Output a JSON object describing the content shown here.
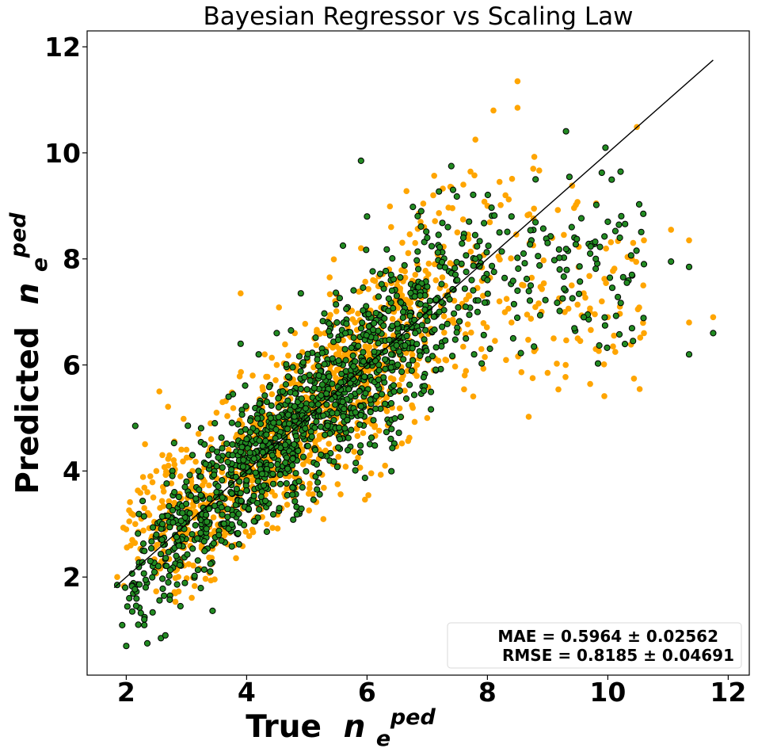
{
  "chart_data": {
    "type": "scatter",
    "title": "Bayesian Regressor vs Scaling Law",
    "xlabel": {
      "prefix": "True",
      "symbol": "n",
      "subscript": "e",
      "superscript": "ped"
    },
    "ylabel": {
      "prefix": "Predicted",
      "symbol": "n",
      "subscript": "e",
      "superscript": "ped"
    },
    "xlim": [
      1.35,
      12.35
    ],
    "ylim": [
      0.15,
      12.3
    ],
    "xticks": [
      2,
      4,
      6,
      8,
      10,
      12
    ],
    "yticks": [
      2,
      4,
      6,
      8,
      10,
      12
    ],
    "grid": false,
    "legend_placement": "lower-right",
    "annotation_lines": [
      "MAE = 0.5964 ± 0.02562",
      "RMSE = 0.8185 ± 0.04691"
    ],
    "identity_line": {
      "x": [
        1.8,
        11.75
      ],
      "y": [
        1.8,
        11.75
      ],
      "color": "#000000"
    },
    "colors": {
      "scaling_law": "#ffa500",
      "bayesian": "#228b22",
      "bayesian_edge": "#000000"
    },
    "series": [
      {
        "color": "#ffa500",
        "points": [
          [
            1.85,
            2.0
          ],
          [
            2.0,
            2.9
          ],
          [
            2.05,
            3.05
          ],
          [
            2.1,
            2.7
          ],
          [
            2.15,
            3.0
          ],
          [
            2.2,
            2.85
          ],
          [
            2.25,
            3.1
          ],
          [
            2.3,
            3.3
          ],
          [
            2.35,
            3.6
          ],
          [
            2.4,
            3.9
          ],
          [
            2.45,
            3.5
          ],
          [
            2.5,
            4.0
          ],
          [
            2.55,
            5.5
          ],
          [
            2.6,
            4.3
          ],
          [
            2.7,
            4.1
          ],
          [
            2.8,
            3.4
          ],
          [
            2.9,
            3.9
          ],
          [
            3.0,
            4.4
          ],
          [
            3.1,
            4.0
          ],
          [
            3.2,
            4.7
          ],
          [
            3.3,
            3.8
          ],
          [
            3.4,
            4.9
          ],
          [
            3.5,
            5.1
          ],
          [
            3.6,
            5.3
          ],
          [
            3.7,
            4.4
          ],
          [
            3.8,
            2.6
          ],
          [
            3.9,
            7.35
          ],
          [
            4.0,
            5.2
          ],
          [
            4.1,
            5.8
          ],
          [
            4.2,
            3.3
          ],
          [
            4.3,
            6.2
          ],
          [
            4.5,
            6.0
          ],
          [
            4.6,
            5.4
          ],
          [
            4.7,
            3.9
          ],
          [
            4.8,
            6.6
          ],
          [
            5.0,
            5.8
          ],
          [
            5.1,
            3.9
          ],
          [
            5.2,
            4.4
          ],
          [
            5.3,
            6.6
          ],
          [
            5.4,
            6.0
          ],
          [
            5.5,
            4.7
          ],
          [
            5.6,
            6.3
          ],
          [
            5.7,
            7.0
          ],
          [
            5.8,
            6.8
          ],
          [
            5.9,
            8.2
          ],
          [
            6.0,
            5.5
          ],
          [
            6.1,
            7.6
          ],
          [
            6.2,
            6.2
          ],
          [
            6.3,
            4.1
          ],
          [
            6.4,
            8.6
          ],
          [
            6.5,
            7.5
          ],
          [
            6.6,
            5.8
          ],
          [
            6.7,
            7.2
          ],
          [
            6.8,
            8.3
          ],
          [
            6.9,
            7.0
          ],
          [
            7.0,
            5.0
          ],
          [
            7.1,
            9.2
          ],
          [
            7.2,
            8.0
          ],
          [
            7.3,
            6.1
          ],
          [
            7.4,
            9.35
          ],
          [
            7.5,
            8.5
          ],
          [
            7.6,
            9.4
          ],
          [
            7.7,
            7.3
          ],
          [
            7.8,
            10.25
          ],
          [
            7.9,
            6.3
          ],
          [
            8.0,
            9.0
          ],
          [
            8.1,
            10.8
          ],
          [
            8.2,
            7.2
          ],
          [
            8.3,
            9.2
          ],
          [
            8.4,
            6.8
          ],
          [
            8.5,
            11.35
          ],
          [
            8.5,
            10.85
          ],
          [
            8.6,
            7.5
          ],
          [
            8.7,
            8.3
          ],
          [
            8.8,
            6.3
          ],
          [
            8.9,
            7.0
          ],
          [
            9.0,
            5.85
          ],
          [
            9.1,
            6.5
          ],
          [
            9.2,
            7.2
          ],
          [
            9.3,
            6.0
          ],
          [
            9.4,
            7.5
          ],
          [
            9.5,
            6.5
          ],
          [
            9.6,
            7.35
          ],
          [
            9.7,
            7.0
          ],
          [
            9.8,
            6.3
          ],
          [
            9.9,
            7.2
          ],
          [
            10.0,
            6.9
          ],
          [
            10.2,
            7.1
          ],
          [
            10.4,
            8.0
          ],
          [
            10.5,
            7.05
          ],
          [
            10.6,
            6.6
          ],
          [
            10.6,
            8.35
          ],
          [
            11.05,
            8.55
          ],
          [
            11.35,
            8.35
          ],
          [
            11.35,
            6.8
          ],
          [
            11.75,
            6.9
          ]
        ],
        "cloud": {
          "x_range": [
            1.85,
            10.6
          ],
          "trend": [
            0.62,
            1.2
          ],
          "count": 1150
        }
      },
      {
        "color": "#228b22",
        "points": [
          [
            1.85,
            1.85
          ],
          [
            2.0,
            0.7
          ],
          [
            2.05,
            1.6
          ],
          [
            2.1,
            1.35
          ],
          [
            2.15,
            4.85
          ],
          [
            2.2,
            1.1
          ],
          [
            2.3,
            1.2
          ],
          [
            2.35,
            0.75
          ],
          [
            2.4,
            2.3
          ],
          [
            2.5,
            2.8
          ],
          [
            2.6,
            3.0
          ],
          [
            2.65,
            0.9
          ],
          [
            2.8,
            3.6
          ],
          [
            2.9,
            1.45
          ],
          [
            3.0,
            3.8
          ],
          [
            3.1,
            4.3
          ],
          [
            3.2,
            4.0
          ],
          [
            3.3,
            4.5
          ],
          [
            3.5,
            3.6
          ],
          [
            3.7,
            5.4
          ],
          [
            3.9,
            6.4
          ],
          [
            4.0,
            4.6
          ],
          [
            4.2,
            6.2
          ],
          [
            4.4,
            5.0
          ],
          [
            4.5,
            6.6
          ],
          [
            4.6,
            5.5
          ],
          [
            4.9,
            7.35
          ],
          [
            5.0,
            5.0
          ],
          [
            5.2,
            5.8
          ],
          [
            5.5,
            6.8
          ],
          [
            5.6,
            8.25
          ],
          [
            5.9,
            9.85
          ],
          [
            6.0,
            8.8
          ],
          [
            6.2,
            5.9
          ],
          [
            6.4,
            7.7
          ],
          [
            6.6,
            7.0
          ],
          [
            6.8,
            6.6
          ],
          [
            6.9,
            8.9
          ],
          [
            7.0,
            8.4
          ],
          [
            7.2,
            7.0
          ],
          [
            7.4,
            9.75
          ],
          [
            7.5,
            7.6
          ],
          [
            7.6,
            8.4
          ],
          [
            7.8,
            8.0
          ],
          [
            8.0,
            7.6
          ],
          [
            8.2,
            8.5
          ],
          [
            8.4,
            8.8
          ],
          [
            8.5,
            7.4
          ],
          [
            8.6,
            8.1
          ],
          [
            8.8,
            9.5
          ],
          [
            9.0,
            8.3
          ],
          [
            9.2,
            7.8
          ],
          [
            9.4,
            8.6
          ],
          [
            9.6,
            6.9
          ],
          [
            9.8,
            8.0
          ],
          [
            10.0,
            8.7
          ],
          [
            10.2,
            8.4
          ],
          [
            10.4,
            7.7
          ],
          [
            10.6,
            7.9
          ],
          [
            11.05,
            7.95
          ],
          [
            11.35,
            7.85
          ],
          [
            11.35,
            6.2
          ],
          [
            11.75,
            6.6
          ]
        ],
        "cloud": {
          "x_range": [
            1.9,
            10.6
          ],
          "trend": [
            0.55,
            1.35
          ],
          "count": 1350
        }
      }
    ]
  }
}
